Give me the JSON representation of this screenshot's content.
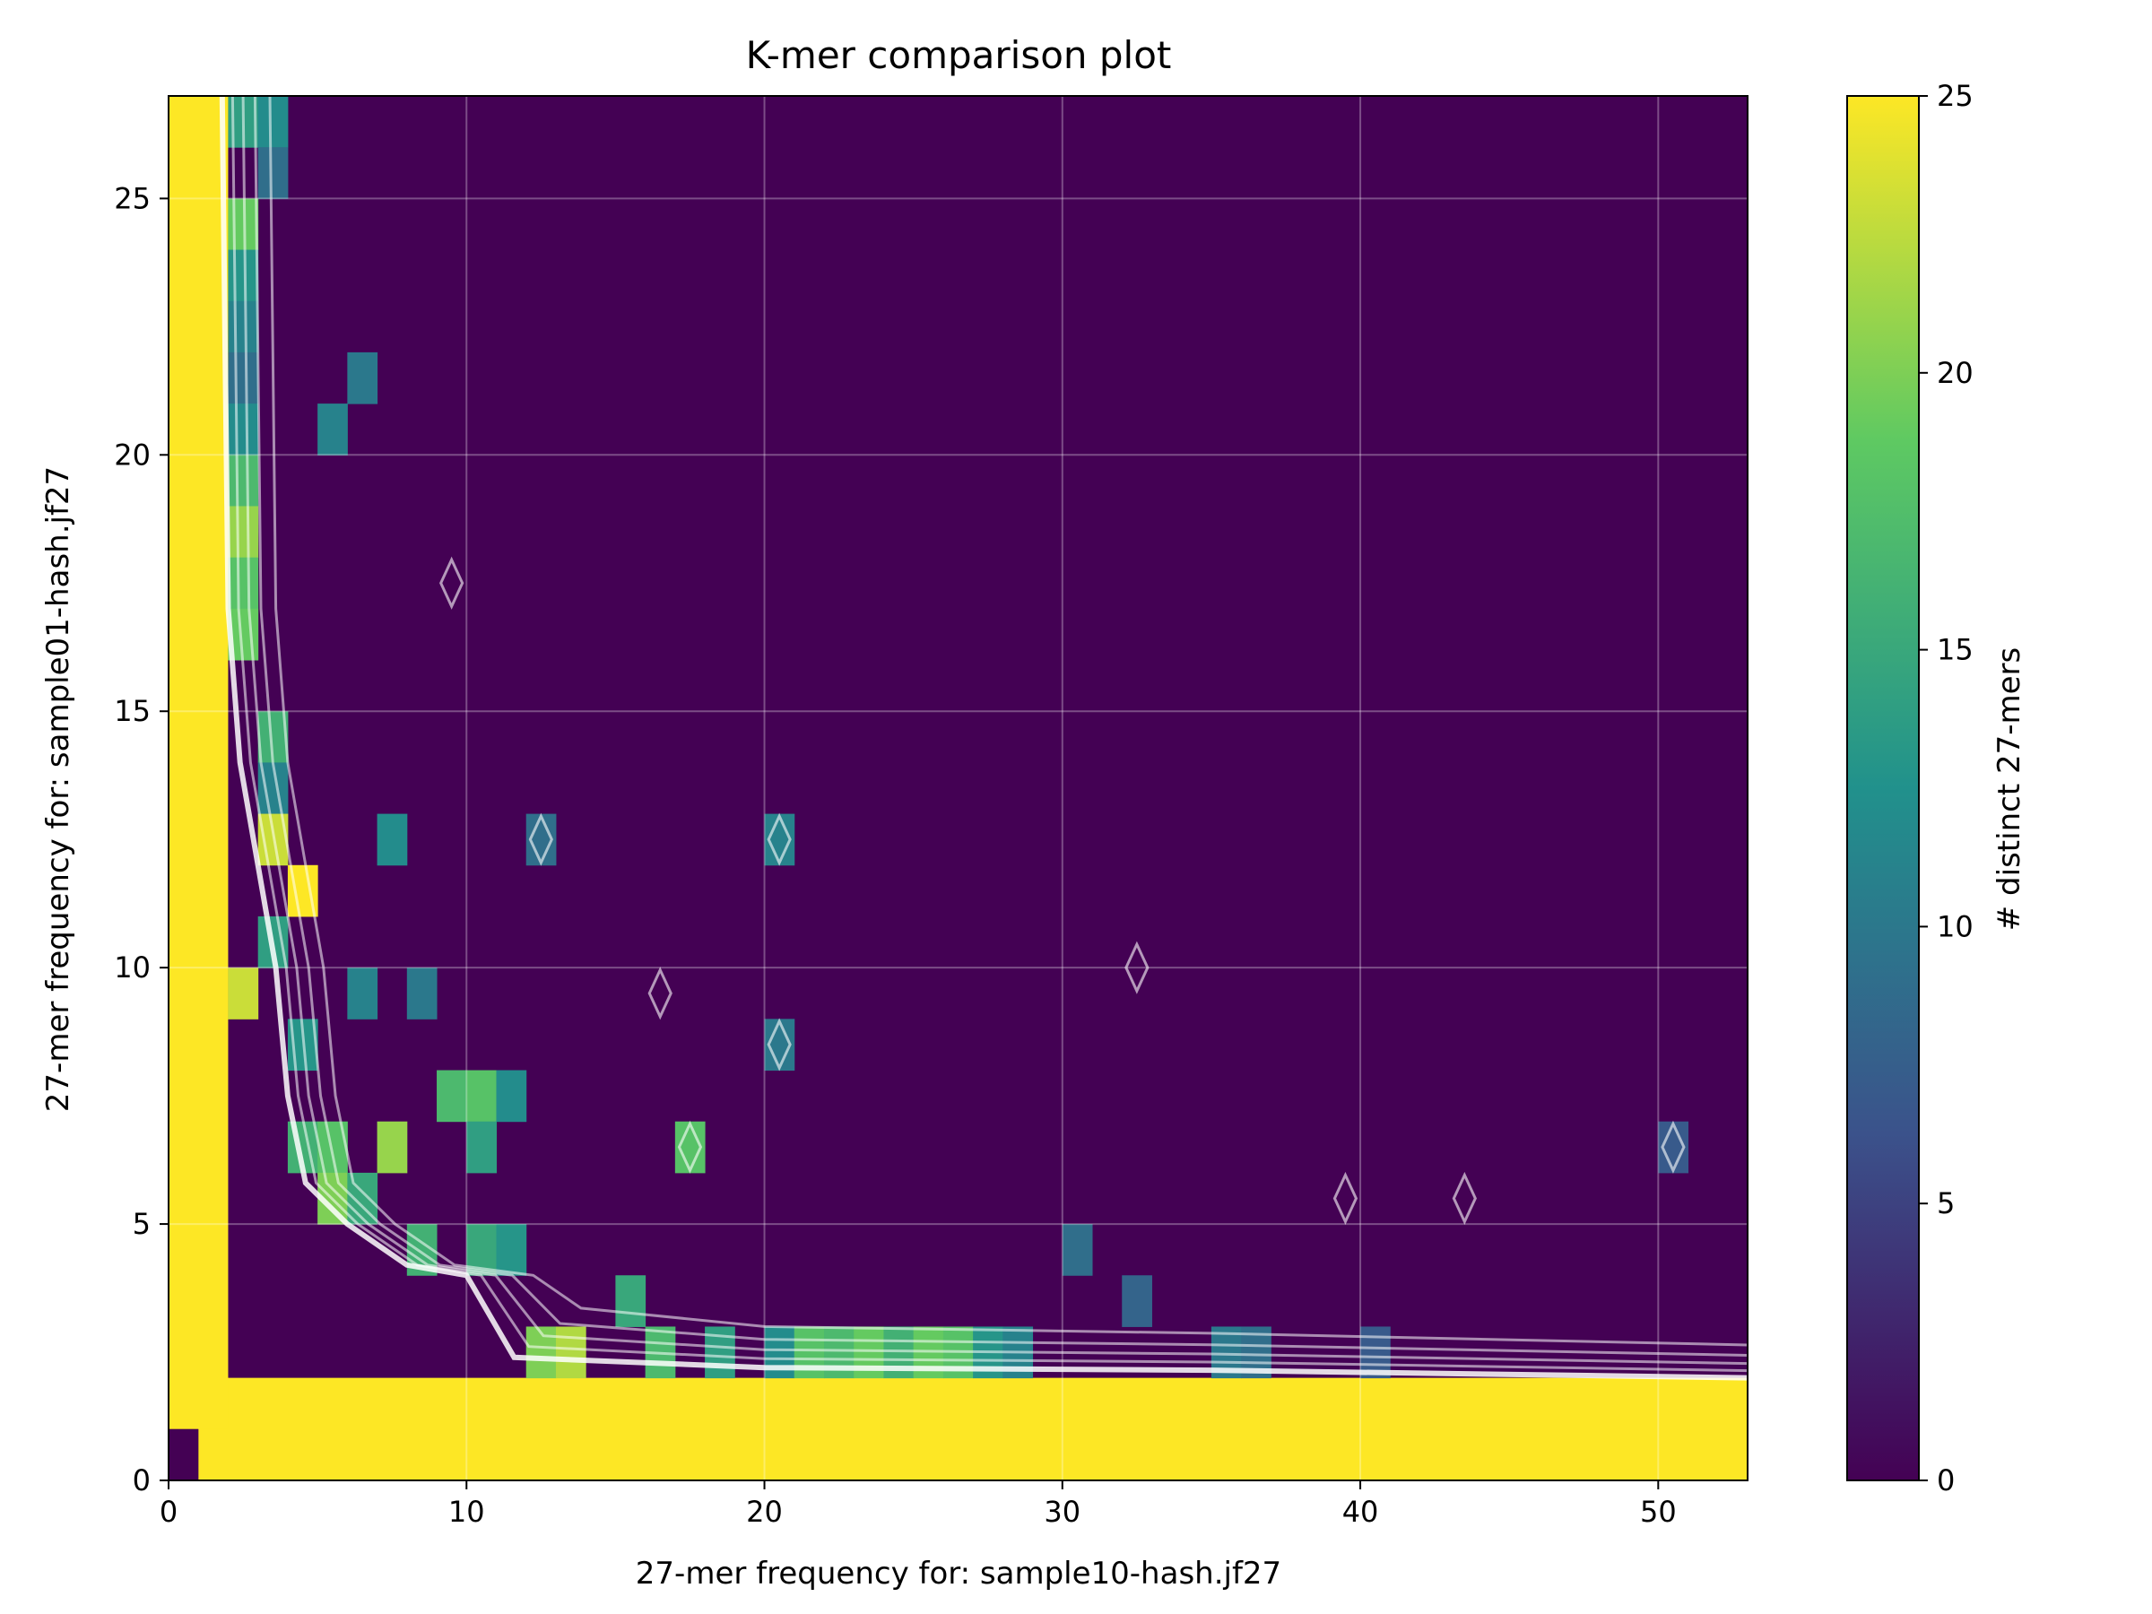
{
  "chart_data": {
    "type": "heatmap",
    "title": "K-mer comparison plot",
    "xlabel": "27-mer frequency for: sample10-hash.jf27",
    "ylabel": "27-mer frequency for: sample01-hash.jf27",
    "xlim": [
      0,
      53
    ],
    "ylim": [
      0,
      27
    ],
    "x_ticks": [
      0,
      10,
      20,
      30,
      40,
      50
    ],
    "y_ticks": [
      0,
      5,
      10,
      15,
      20,
      25
    ],
    "grid": true,
    "colorbar": {
      "label": "# distinct 27-mers",
      "range": [
        0,
        25
      ],
      "ticks": [
        0,
        5,
        10,
        15,
        20,
        25
      ],
      "colormap": "viridis"
    },
    "colormap_stops": [
      "#440154",
      "#3b528b",
      "#21918c",
      "#5ec962",
      "#fde725"
    ],
    "contour_color": "#ffffff",
    "saturated_regions": [
      {
        "name": "bottom band",
        "x_range": [
          1,
          53
        ],
        "y_range": [
          0,
          2
        ],
        "value": 25
      },
      {
        "name": "left band",
        "x_range": [
          0,
          2
        ],
        "y_range": [
          1,
          27
        ],
        "value": 25
      }
    ],
    "empty_cells": [
      {
        "x": 0,
        "y": 0,
        "value": 0
      }
    ],
    "highlighted_cells": [
      {
        "x": 2,
        "y": 26,
        "value": 14
      },
      {
        "x": 3,
        "y": 26,
        "value": 12
      },
      {
        "x": 3,
        "y": 25,
        "value": 9
      },
      {
        "x": 2,
        "y": 24,
        "value": 19
      },
      {
        "x": 2,
        "y": 23,
        "value": 13
      },
      {
        "x": 2,
        "y": 22,
        "value": 11
      },
      {
        "x": 2,
        "y": 21,
        "value": 9
      },
      {
        "x": 2,
        "y": 20,
        "value": 12
      },
      {
        "x": 2,
        "y": 19,
        "value": 17
      },
      {
        "x": 2,
        "y": 18,
        "value": 21
      },
      {
        "x": 2,
        "y": 17,
        "value": 18
      },
      {
        "x": 2,
        "y": 16,
        "value": 19
      },
      {
        "x": 3,
        "y": 14,
        "value": 16
      },
      {
        "x": 3,
        "y": 13,
        "value": 11
      },
      {
        "x": 3,
        "y": 12,
        "value": 23
      },
      {
        "x": 4,
        "y": 11,
        "value": 25
      },
      {
        "x": 3,
        "y": 10,
        "value": 14
      },
      {
        "x": 2,
        "y": 9,
        "value": 23
      },
      {
        "x": 4,
        "y": 8,
        "value": 13
      },
      {
        "x": 4,
        "y": 6,
        "value": 16
      },
      {
        "x": 5,
        "y": 6,
        "value": 18
      },
      {
        "x": 7,
        "y": 6,
        "value": 21
      },
      {
        "x": 5,
        "y": 5,
        "value": 20
      },
      {
        "x": 6,
        "y": 5,
        "value": 15
      },
      {
        "x": 9,
        "y": 7,
        "value": 17
      },
      {
        "x": 10,
        "y": 7,
        "value": 18
      },
      {
        "x": 10,
        "y": 6,
        "value": 14
      },
      {
        "x": 8,
        "y": 4,
        "value": 16
      },
      {
        "x": 10,
        "y": 4,
        "value": 15
      },
      {
        "x": 11,
        "y": 4,
        "value": 13
      },
      {
        "x": 12,
        "y": 2,
        "value": 20
      },
      {
        "x": 13,
        "y": 2,
        "value": 22
      },
      {
        "x": 15,
        "y": 3,
        "value": 15
      },
      {
        "x": 16,
        "y": 2,
        "value": 17
      },
      {
        "x": 17,
        "y": 6,
        "value": 18
      },
      {
        "x": 18,
        "y": 2,
        "value": 14
      },
      {
        "x": 20,
        "y": 2,
        "value": 12
      },
      {
        "x": 21,
        "y": 2,
        "value": 18
      },
      {
        "x": 22,
        "y": 2,
        "value": 17
      },
      {
        "x": 23,
        "y": 2,
        "value": 19
      },
      {
        "x": 24,
        "y": 2,
        "value": 16
      },
      {
        "x": 25,
        "y": 2,
        "value": 19
      },
      {
        "x": 26,
        "y": 2,
        "value": 18
      },
      {
        "x": 27,
        "y": 2,
        "value": 13
      },
      {
        "x": 28,
        "y": 2,
        "value": 11
      },
      {
        "x": 30,
        "y": 4,
        "value": 9
      },
      {
        "x": 32,
        "y": 3,
        "value": 8
      },
      {
        "x": 35,
        "y": 2,
        "value": 10
      },
      {
        "x": 36,
        "y": 2,
        "value": 9
      },
      {
        "x": 40,
        "y": 2,
        "value": 7
      },
      {
        "x": 50,
        "y": 6,
        "value": 7
      },
      {
        "x": 6,
        "y": 21,
        "value": 10
      },
      {
        "x": 5,
        "y": 20,
        "value": 11
      },
      {
        "x": 7,
        "y": 12,
        "value": 12
      },
      {
        "x": 6,
        "y": 9,
        "value": 11
      },
      {
        "x": 8,
        "y": 9,
        "value": 10
      },
      {
        "x": 11,
        "y": 7,
        "value": 12
      },
      {
        "x": 20,
        "y": 8,
        "value": 10
      },
      {
        "x": 20,
        "y": 12,
        "value": 11
      },
      {
        "x": 12,
        "y": 12,
        "value": 9
      }
    ]
  }
}
